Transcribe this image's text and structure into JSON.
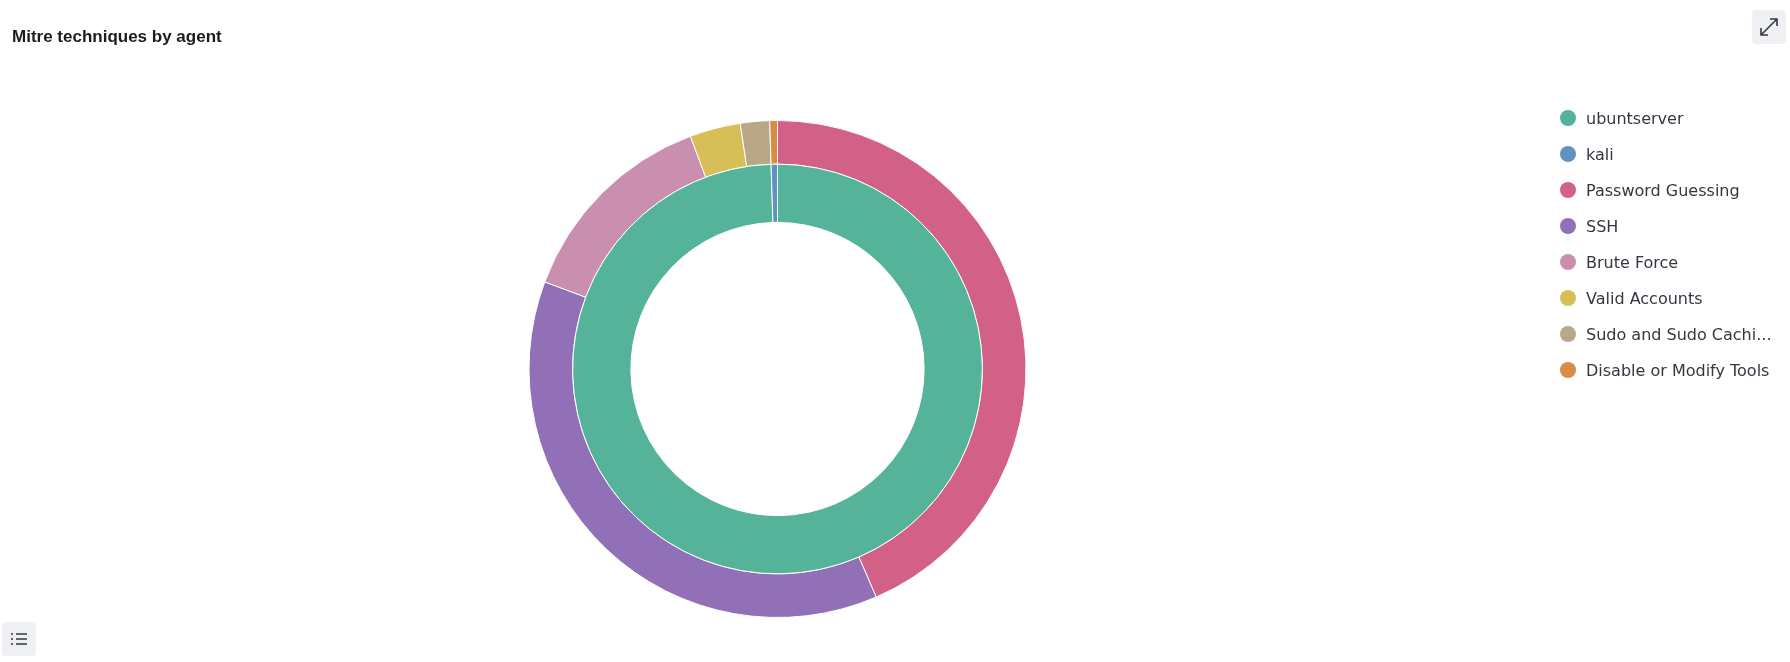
{
  "chart_data": {
    "type": "donut",
    "title": "Mitre techniques by agent",
    "categories": [
      "ubuntserver",
      "kali",
      "Password Guessing",
      "SSH",
      "Brute Force",
      "Valid Accounts",
      "Sudo and Sudo Cachi...",
      "Disable or Modify Tools"
    ],
    "colors": [
      "#54b399",
      "#6092c0",
      "#d36086",
      "#9170b8",
      "#ca8eae",
      "#d6bf57",
      "#b9a888",
      "#da8b45"
    ],
    "series": [
      {
        "values": [
          99.5,
          0.5,
          null,
          null,
          null,
          null,
          null,
          null
        ]
      },
      {
        "values": [
          null,
          null,
          43.5,
          37.2,
          13.6,
          3.3,
          1.9,
          0.5
        ]
      }
    ],
    "legend": "top right"
  }
}
